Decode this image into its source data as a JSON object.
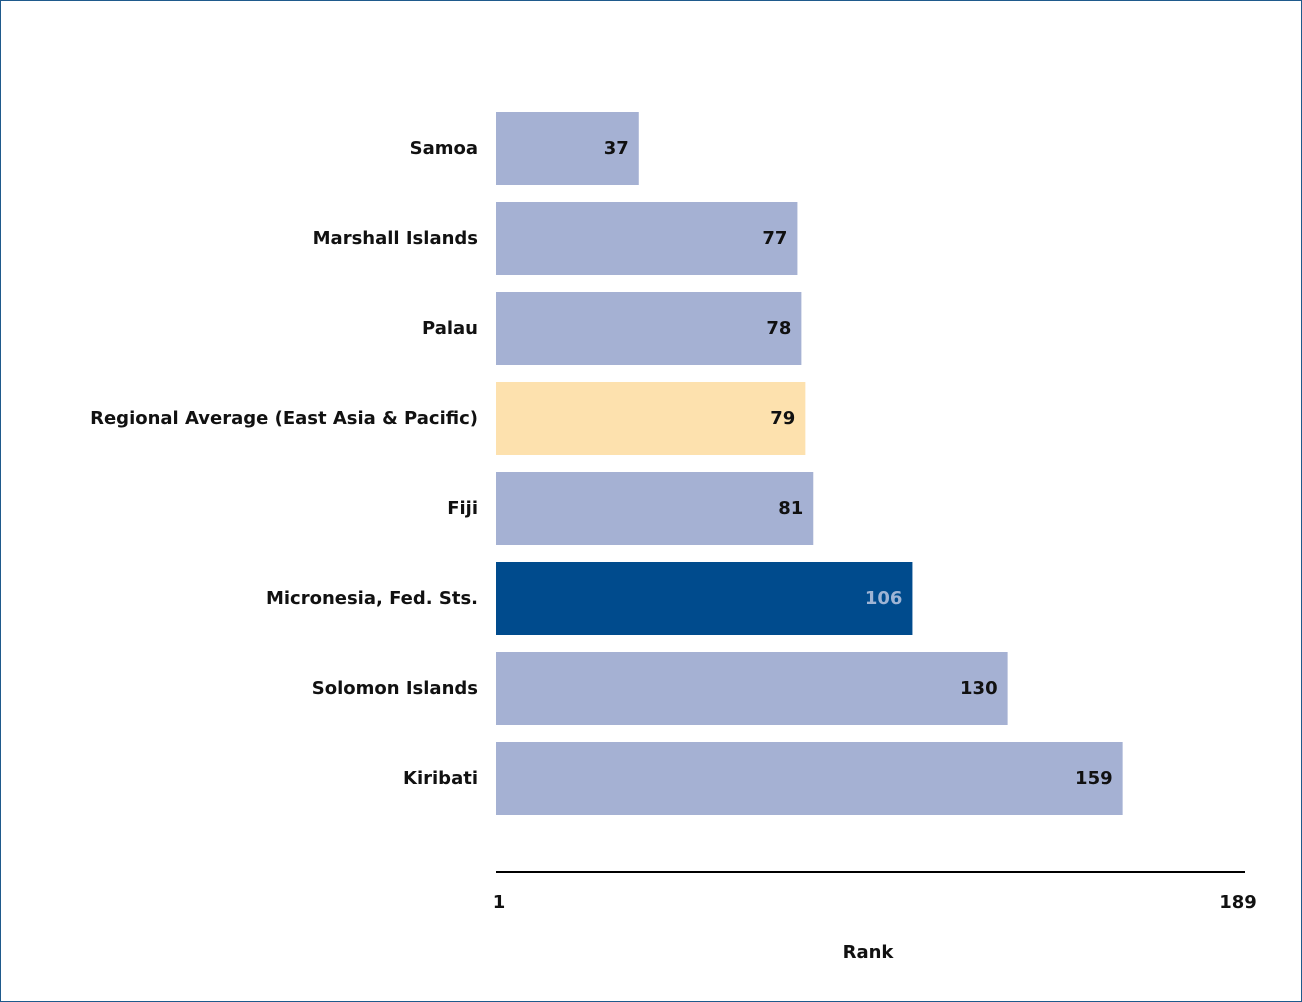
{
  "colors": {
    "default_bar": "#a5b1d3",
    "highlight_bar": "#004b8d",
    "average_bar": "#fde1ae",
    "label_default": "#111111",
    "label_highlight": "#9fb4d4",
    "axis_line": "#000000",
    "frame_border": "#1f5a8c"
  },
  "chart_data": {
    "type": "bar",
    "orientation": "horizontal",
    "title": "",
    "xlabel": "Rank",
    "ylabel": "",
    "xlim": [
      1,
      189
    ],
    "x_tick_labels": [
      "1",
      "189"
    ],
    "grid": false,
    "legend": "none",
    "categories": [
      "Samoa",
      "Marshall Islands",
      "Palau",
      "Regional Average (East Asia & Pacific)",
      "Fiji",
      "Micronesia, Fed. Sts.",
      "Solomon Islands",
      "Kiribati"
    ],
    "values": [
      37,
      77,
      78,
      79,
      81,
      106,
      130,
      159
    ],
    "bar_styles": [
      "default",
      "default",
      "default",
      "average",
      "default",
      "highlight",
      "default",
      "default"
    ]
  }
}
